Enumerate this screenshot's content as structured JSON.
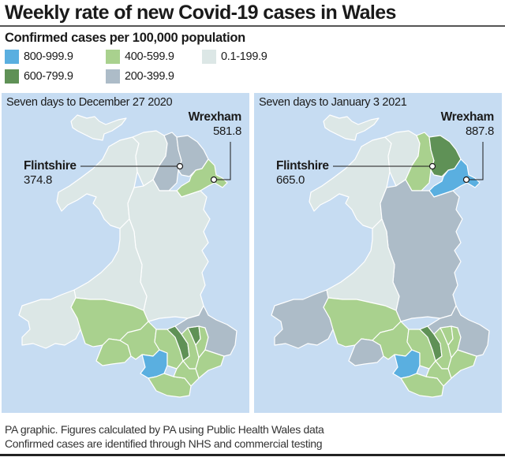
{
  "header": {
    "title": "Weekly rate of new Covid-19 cases in Wales",
    "subtitle": "Confirmed cases per 100,000 population"
  },
  "legend": {
    "items": [
      {
        "label": "800-999.9",
        "color": "#5aafe0"
      },
      {
        "label": "600-799.9",
        "color": "#5f9156"
      },
      {
        "label": "400-599.9",
        "color": "#a9d18e"
      },
      {
        "label": "200-399.9",
        "color": "#adbcc8"
      },
      {
        "label": "0.1-199.9",
        "color": "#dce7e6"
      }
    ]
  },
  "colors": {
    "sea": "#c6dcf2",
    "border": "#ffffff",
    "leader_line": "#1a1a1a"
  },
  "maps": [
    {
      "period": "Seven days to December 27 2020",
      "callouts": [
        {
          "name": "Flintshire",
          "value": "374.8"
        },
        {
          "name": "Wrexham",
          "value": "581.8"
        }
      ],
      "regions": {
        "anglesey": "#dce7e6",
        "gwynedd": "#dce7e6",
        "conwy": "#dce7e6",
        "denbighshire": "#adbcc8",
        "flintshire": "#adbcc8",
        "wrexham": "#a9d18e",
        "powys": "#dce7e6",
        "ceredigion": "#dce7e6",
        "pembrokeshire": "#dce7e6",
        "carmarthenshire": "#a9d18e",
        "swansea": "#a9d18e",
        "neath_port_talbot": "#a9d18e",
        "bridgend": "#5aafe0",
        "vale_of_glamorgan": "#a9d18e",
        "rhondda": "#a9d18e",
        "merthyr": "#5f9156",
        "caerphilly": "#a9d18e",
        "blaenau_gwent": "#5f9156",
        "torfaen": "#a9d18e",
        "newport": "#a9d18e",
        "cardiff": "#a9d18e",
        "monmouthshire": "#adbcc8"
      }
    },
    {
      "period": "Seven days to January 3 2021",
      "callouts": [
        {
          "name": "Flintshire",
          "value": "665.0"
        },
        {
          "name": "Wrexham",
          "value": "887.8"
        }
      ],
      "regions": {
        "anglesey": "#dce7e6",
        "gwynedd": "#dce7e6",
        "conwy": "#dce7e6",
        "denbighshire": "#a9d18e",
        "flintshire": "#5f9156",
        "wrexham": "#5aafe0",
        "powys": "#adbcc8",
        "ceredigion": "#dce7e6",
        "pembrokeshire": "#adbcc8",
        "carmarthenshire": "#a9d18e",
        "swansea": "#adbcc8",
        "neath_port_talbot": "#a9d18e",
        "bridgend": "#5aafe0",
        "vale_of_glamorgan": "#a9d18e",
        "rhondda": "#a9d18e",
        "merthyr": "#5f9156",
        "caerphilly": "#a9d18e",
        "blaenau_gwent": "#a9d18e",
        "torfaen": "#a9d18e",
        "newport": "#a9d18e",
        "cardiff": "#a9d18e",
        "monmouthshire": "#adbcc8"
      }
    }
  ],
  "footer": {
    "line1": "PA graphic. Figures calculated by PA using Public Health Wales data",
    "line2": "Confirmed cases are identified through NHS and commercial testing"
  },
  "chart_data": {
    "type": "heatmap",
    "title": "Weekly rate of new Covid-19 cases in Wales",
    "subtitle": "Confirmed cases per 100,000 population",
    "legend": [
      "800-999.9",
      "600-799.9",
      "400-599.9",
      "200-399.9",
      "0.1-199.9"
    ],
    "panels": [
      {
        "period": "Seven days to December 27 2020",
        "annotations": {
          "Flintshire": 374.8,
          "Wrexham": 581.8
        }
      },
      {
        "period": "Seven days to January 3 2021",
        "annotations": {
          "Flintshire": 665.0,
          "Wrexham": 887.8
        }
      }
    ]
  }
}
